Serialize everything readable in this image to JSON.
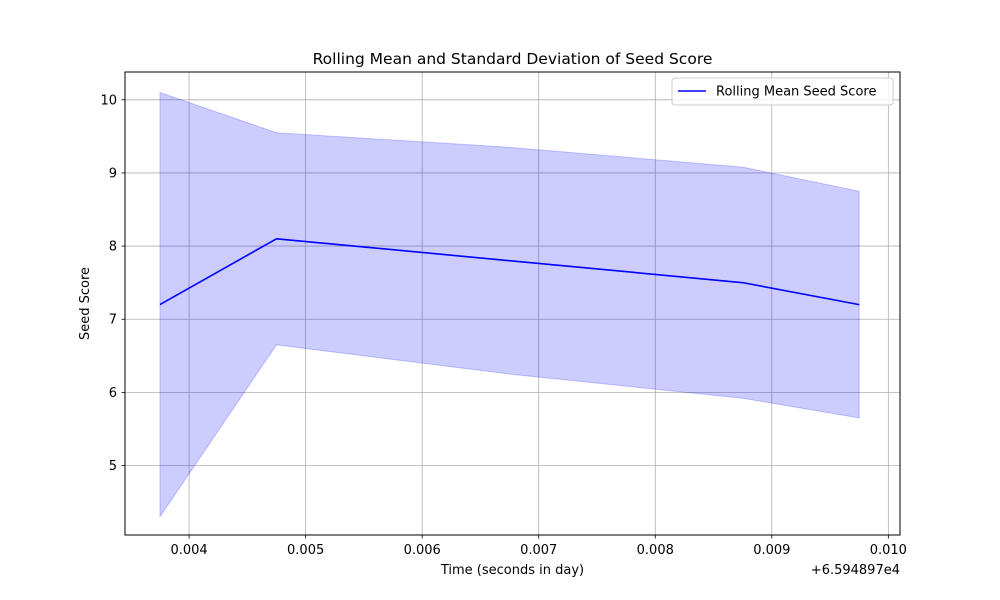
{
  "chart_data": {
    "type": "line",
    "title": "Rolling Mean and Standard Deviation of Seed Score",
    "xlabel": "Time (seconds in day)",
    "ylabel": "Seed Score",
    "x_offset_label": "+6.594897e4",
    "x_tick_labels": [
      "0.004",
      "0.005",
      "0.006",
      "0.007",
      "0.008",
      "0.009",
      "0.010"
    ],
    "y_tick_labels": [
      "5",
      "6",
      "7",
      "8",
      "9",
      "10"
    ],
    "xlim": [
      0.00345,
      0.0101
    ],
    "ylim": [
      4.05,
      10.38
    ],
    "grid": true,
    "legend_position": "top-right",
    "series": [
      {
        "name": "Rolling Mean Seed Score",
        "color": "#0000ff",
        "x": [
          0.00375,
          0.00475,
          0.00875,
          0.00975
        ],
        "values": [
          7.2,
          8.1,
          7.5,
          7.2
        ]
      }
    ],
    "band": {
      "color": "#0000ff",
      "opacity": 0.2,
      "x": [
        0.00375,
        0.00475,
        0.00675,
        0.00875,
        0.00975
      ],
      "upper": [
        10.1,
        9.55,
        9.35,
        9.08,
        8.75
      ],
      "lower": [
        4.3,
        6.65,
        6.25,
        5.92,
        5.65
      ]
    }
  }
}
